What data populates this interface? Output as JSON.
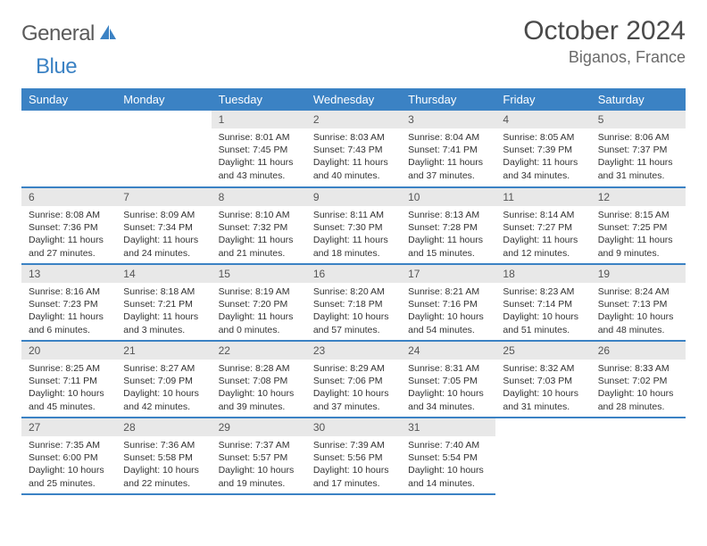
{
  "logo": {
    "text1": "General",
    "text2": "Blue"
  },
  "title": "October 2024",
  "location": "Biganos, France",
  "columns": [
    "Sunday",
    "Monday",
    "Tuesday",
    "Wednesday",
    "Thursday",
    "Friday",
    "Saturday"
  ],
  "colors": {
    "accent": "#3b82c4",
    "header_bg": "#3b82c4",
    "header_text": "#ffffff",
    "daynum_bg": "#e8e8e8",
    "text": "#333333",
    "background": "#ffffff"
  },
  "typography": {
    "title_fontsize": 30,
    "location_fontsize": 18,
    "header_fontsize": 13,
    "cell_fontsize": 10.5
  },
  "weeks": [
    [
      null,
      null,
      {
        "n": "1",
        "sunrise": "8:01 AM",
        "sunset": "7:45 PM",
        "daylight": "11 hours and 43 minutes."
      },
      {
        "n": "2",
        "sunrise": "8:03 AM",
        "sunset": "7:43 PM",
        "daylight": "11 hours and 40 minutes."
      },
      {
        "n": "3",
        "sunrise": "8:04 AM",
        "sunset": "7:41 PM",
        "daylight": "11 hours and 37 minutes."
      },
      {
        "n": "4",
        "sunrise": "8:05 AM",
        "sunset": "7:39 PM",
        "daylight": "11 hours and 34 minutes."
      },
      {
        "n": "5",
        "sunrise": "8:06 AM",
        "sunset": "7:37 PM",
        "daylight": "11 hours and 31 minutes."
      }
    ],
    [
      {
        "n": "6",
        "sunrise": "8:08 AM",
        "sunset": "7:36 PM",
        "daylight": "11 hours and 27 minutes."
      },
      {
        "n": "7",
        "sunrise": "8:09 AM",
        "sunset": "7:34 PM",
        "daylight": "11 hours and 24 minutes."
      },
      {
        "n": "8",
        "sunrise": "8:10 AM",
        "sunset": "7:32 PM",
        "daylight": "11 hours and 21 minutes."
      },
      {
        "n": "9",
        "sunrise": "8:11 AM",
        "sunset": "7:30 PM",
        "daylight": "11 hours and 18 minutes."
      },
      {
        "n": "10",
        "sunrise": "8:13 AM",
        "sunset": "7:28 PM",
        "daylight": "11 hours and 15 minutes."
      },
      {
        "n": "11",
        "sunrise": "8:14 AM",
        "sunset": "7:27 PM",
        "daylight": "11 hours and 12 minutes."
      },
      {
        "n": "12",
        "sunrise": "8:15 AM",
        "sunset": "7:25 PM",
        "daylight": "11 hours and 9 minutes."
      }
    ],
    [
      {
        "n": "13",
        "sunrise": "8:16 AM",
        "sunset": "7:23 PM",
        "daylight": "11 hours and 6 minutes."
      },
      {
        "n": "14",
        "sunrise": "8:18 AM",
        "sunset": "7:21 PM",
        "daylight": "11 hours and 3 minutes."
      },
      {
        "n": "15",
        "sunrise": "8:19 AM",
        "sunset": "7:20 PM",
        "daylight": "11 hours and 0 minutes."
      },
      {
        "n": "16",
        "sunrise": "8:20 AM",
        "sunset": "7:18 PM",
        "daylight": "10 hours and 57 minutes."
      },
      {
        "n": "17",
        "sunrise": "8:21 AM",
        "sunset": "7:16 PM",
        "daylight": "10 hours and 54 minutes."
      },
      {
        "n": "18",
        "sunrise": "8:23 AM",
        "sunset": "7:14 PM",
        "daylight": "10 hours and 51 minutes."
      },
      {
        "n": "19",
        "sunrise": "8:24 AM",
        "sunset": "7:13 PM",
        "daylight": "10 hours and 48 minutes."
      }
    ],
    [
      {
        "n": "20",
        "sunrise": "8:25 AM",
        "sunset": "7:11 PM",
        "daylight": "10 hours and 45 minutes."
      },
      {
        "n": "21",
        "sunrise": "8:27 AM",
        "sunset": "7:09 PM",
        "daylight": "10 hours and 42 minutes."
      },
      {
        "n": "22",
        "sunrise": "8:28 AM",
        "sunset": "7:08 PM",
        "daylight": "10 hours and 39 minutes."
      },
      {
        "n": "23",
        "sunrise": "8:29 AM",
        "sunset": "7:06 PM",
        "daylight": "10 hours and 37 minutes."
      },
      {
        "n": "24",
        "sunrise": "8:31 AM",
        "sunset": "7:05 PM",
        "daylight": "10 hours and 34 minutes."
      },
      {
        "n": "25",
        "sunrise": "8:32 AM",
        "sunset": "7:03 PM",
        "daylight": "10 hours and 31 minutes."
      },
      {
        "n": "26",
        "sunrise": "8:33 AM",
        "sunset": "7:02 PM",
        "daylight": "10 hours and 28 minutes."
      }
    ],
    [
      {
        "n": "27",
        "sunrise": "7:35 AM",
        "sunset": "6:00 PM",
        "daylight": "10 hours and 25 minutes."
      },
      {
        "n": "28",
        "sunrise": "7:36 AM",
        "sunset": "5:58 PM",
        "daylight": "10 hours and 22 minutes."
      },
      {
        "n": "29",
        "sunrise": "7:37 AM",
        "sunset": "5:57 PM",
        "daylight": "10 hours and 19 minutes."
      },
      {
        "n": "30",
        "sunrise": "7:39 AM",
        "sunset": "5:56 PM",
        "daylight": "10 hours and 17 minutes."
      },
      {
        "n": "31",
        "sunrise": "7:40 AM",
        "sunset": "5:54 PM",
        "daylight": "10 hours and 14 minutes."
      },
      null,
      null
    ]
  ],
  "labels": {
    "sunrise": "Sunrise:",
    "sunset": "Sunset:",
    "daylight": "Daylight:"
  }
}
